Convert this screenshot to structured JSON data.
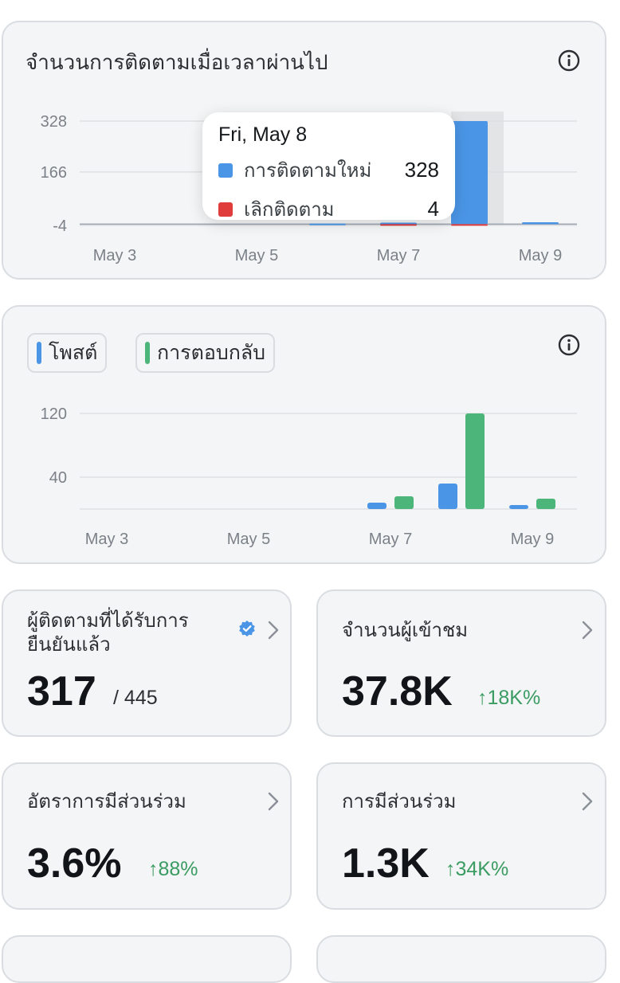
{
  "followers_card": {
    "title": "จำนวนการติดตามเมื่อเวลาผ่านไป",
    "info_icon": "info-circle-icon",
    "tooltip": {
      "date": "Fri, May 8",
      "rows": [
        {
          "label": "การติดตามใหม่",
          "value": "328",
          "color": "#4a95e6"
        },
        {
          "label": "เลิกติดตาม",
          "value": "4",
          "color": "#e03c3c"
        }
      ]
    }
  },
  "posts_card": {
    "legend": [
      {
        "label": "โพสต์",
        "color": "#4a95e6"
      },
      {
        "label": "การตอบกลับ",
        "color": "#4cb57a"
      }
    ],
    "info_icon": "info-circle-icon"
  },
  "chart_data": [
    {
      "type": "bar",
      "categories": [
        "May 3",
        "May 4",
        "May 5",
        "May 6",
        "May 7",
        "May 8",
        "May 9"
      ],
      "series": [
        {
          "name": "การติดตามใหม่",
          "values": [
            0,
            0,
            0,
            2,
            5,
            328,
            6
          ]
        },
        {
          "name": "เลิกติดตาม",
          "values": [
            0,
            0,
            0,
            0,
            -2,
            -4,
            0
          ]
        }
      ],
      "x_ticks": [
        "May 3",
        "May 5",
        "May 7",
        "May 9"
      ],
      "y_ticks": [
        "328",
        "166",
        "-4"
      ],
      "ylim": [
        -4,
        328
      ],
      "grid": true,
      "highlight_category": "May 8"
    },
    {
      "type": "bar",
      "categories": [
        "May 3",
        "May 4",
        "May 5",
        "May 6",
        "May 7",
        "May 8",
        "May 9"
      ],
      "series": [
        {
          "name": "โพสต์",
          "values": [
            0,
            0,
            0,
            0,
            8,
            32,
            5
          ]
        },
        {
          "name": "การตอบกลับ",
          "values": [
            0,
            0,
            0,
            0,
            16,
            120,
            13
          ]
        }
      ],
      "x_ticks": [
        "May 3",
        "May 5",
        "May 7",
        "May 9"
      ],
      "y_ticks": [
        "120",
        "40"
      ],
      "ylim": [
        0,
        120
      ],
      "grid": true
    }
  ],
  "stats": [
    {
      "title": "ผู้ติดตามที่ได้รับการยืนยันแล้ว",
      "value": "317",
      "sub": "/ 445",
      "delta": "",
      "verified_icon": "verified-badge-icon"
    },
    {
      "title": "จำนวนผู้เข้าชม",
      "value": "37.8K",
      "sub": "",
      "delta": "↑18K%"
    },
    {
      "title": "อัตราการมีส่วนร่วม",
      "value": "3.6%",
      "sub": "",
      "delta": "↑88%"
    },
    {
      "title": "การมีส่วนร่วม",
      "value": "1.3K",
      "sub": "",
      "delta": "↑34K%"
    }
  ],
  "colors": {
    "accent_blue": "#4a95e6",
    "accent_green": "#4cb57a",
    "accent_red": "#e03c3c",
    "delta_green": "#3a9c62"
  }
}
